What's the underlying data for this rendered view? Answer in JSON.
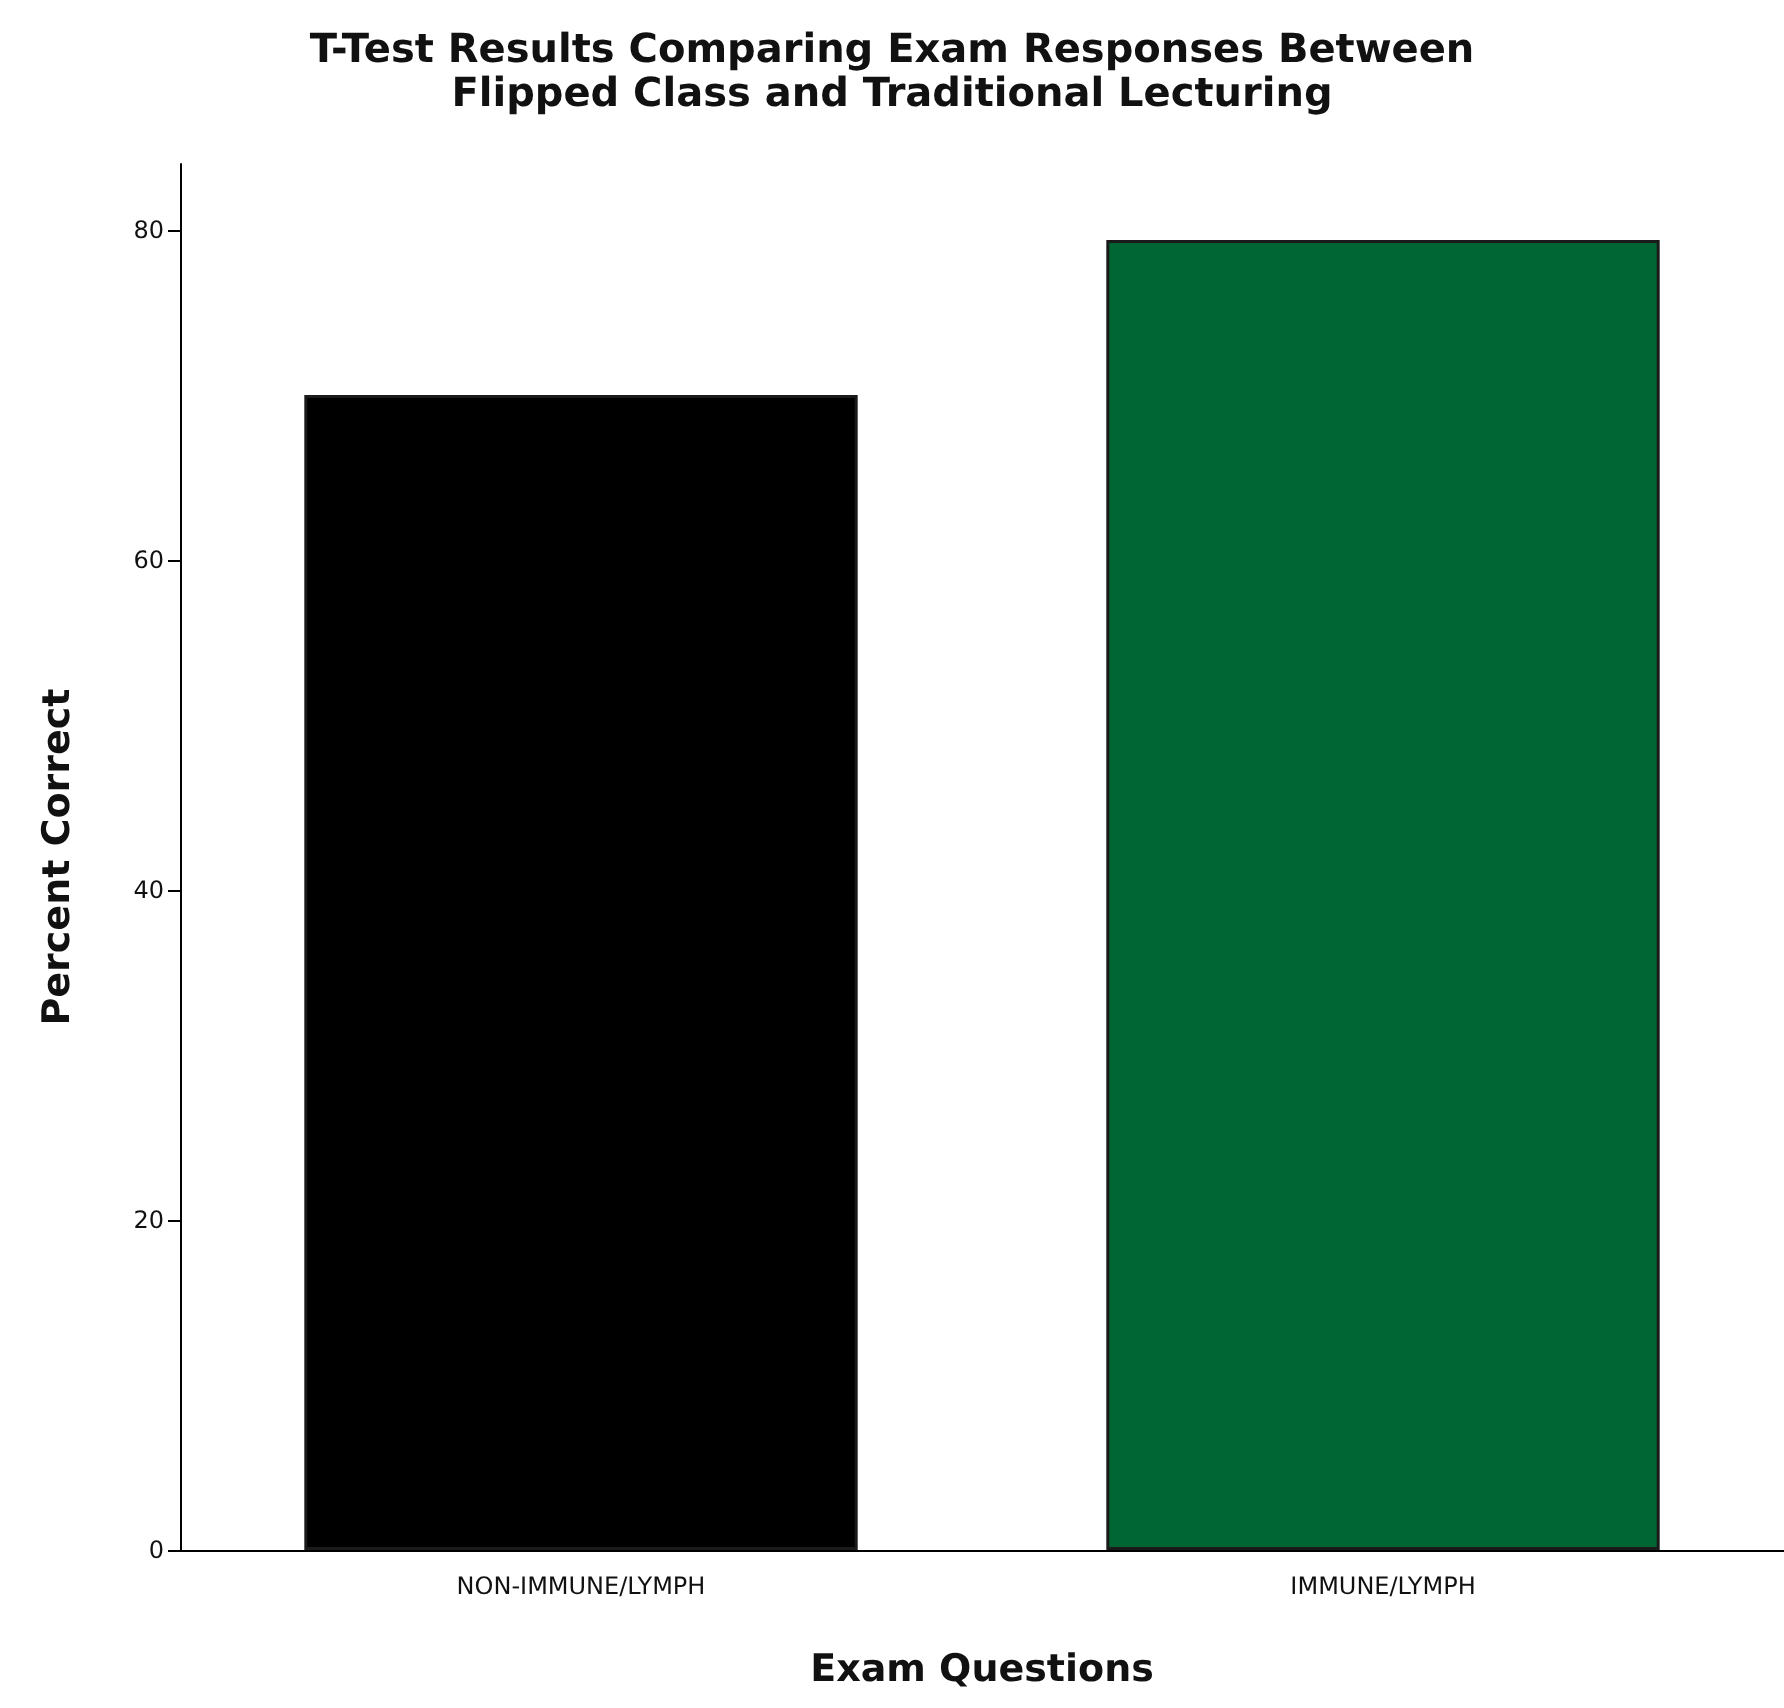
{
  "chart_data": {
    "type": "bar",
    "title": "T-Test Results Comparing Exam Responses Between\nFlipped Class and Traditional Lecturing",
    "xlabel": "Exam Questions",
    "ylabel": "Percent Correct",
    "categories": [
      "NON-IMMUNE/LYMPH",
      "IMMUNE/LYMPH"
    ],
    "values": [
      70.0,
      79.4
    ],
    "colors": [
      "#000000",
      "#006633"
    ],
    "ylim": [
      0,
      84
    ],
    "yticks": [
      0,
      20,
      40,
      60,
      80
    ],
    "grid": false
  }
}
